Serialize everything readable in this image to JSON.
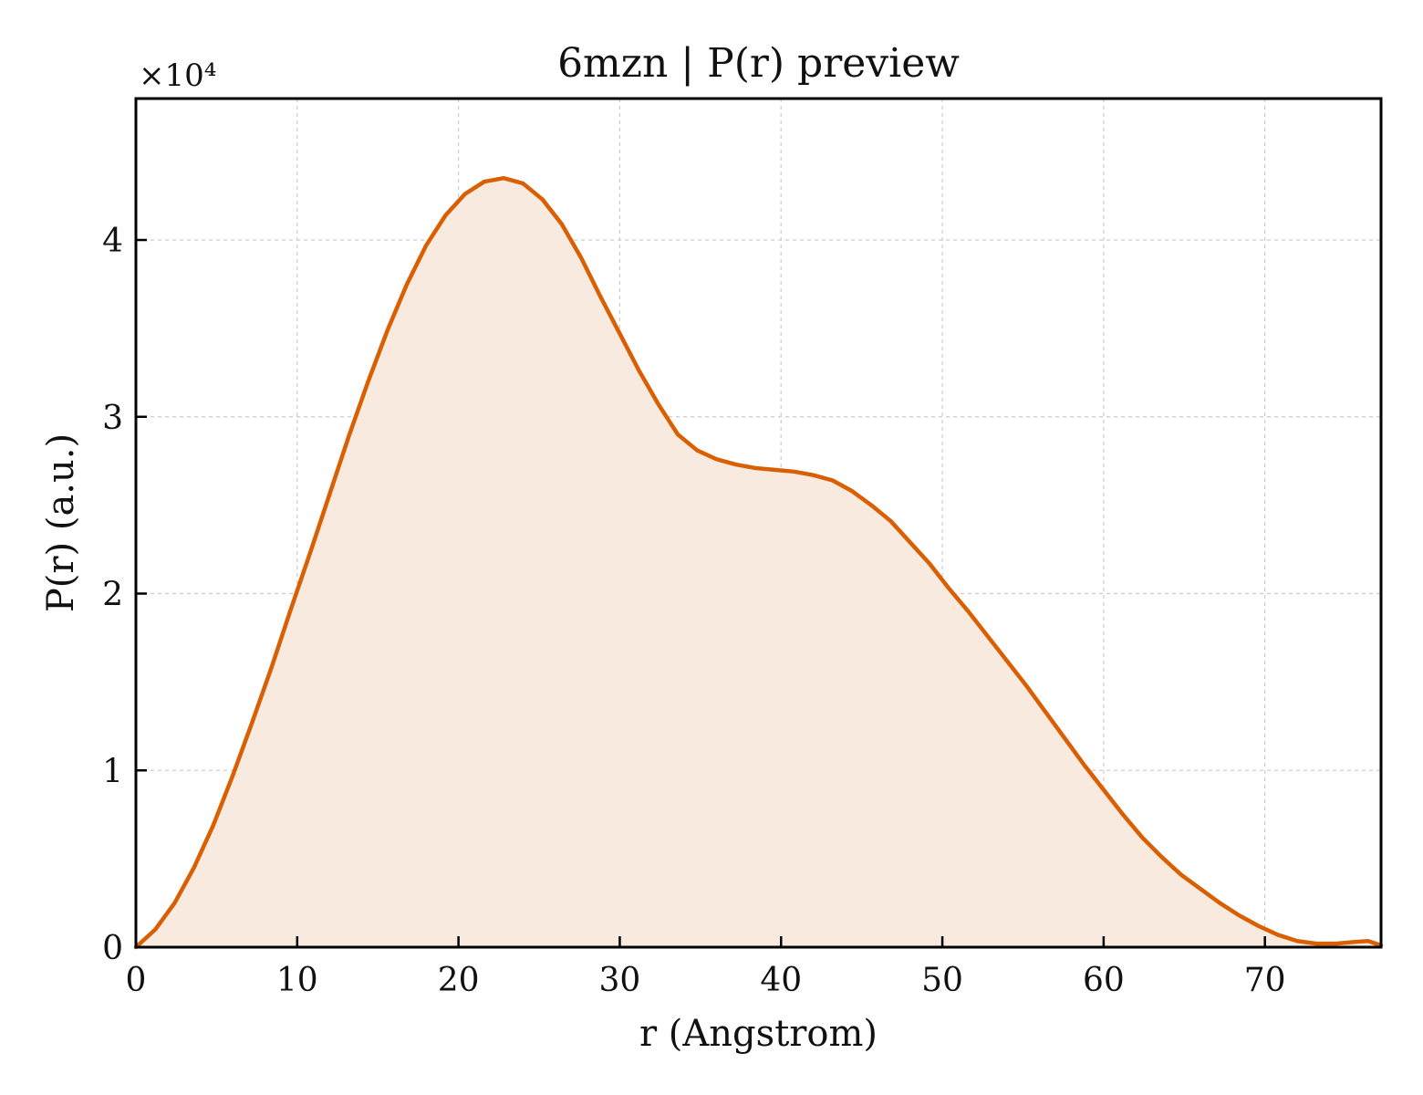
{
  "chart_data": {
    "type": "area",
    "title": "6mzn | P(r) preview",
    "xlabel": "r (Angstrom)",
    "ylabel": "P(r) (a.u.)",
    "y_offset_label": "×10⁴",
    "y_multiplier": 10000,
    "xlim": [
      0,
      77.2
    ],
    "ylim": [
      0,
      48000
    ],
    "x_ticks": [
      0,
      10,
      20,
      30,
      40,
      50,
      60,
      70
    ],
    "y_ticks": [
      0,
      10000,
      20000,
      30000,
      40000
    ],
    "y_tick_labels": [
      "0",
      "1",
      "2",
      "3",
      "4"
    ],
    "grid": true,
    "colors": {
      "line": "#d95f02",
      "fill": "#f9eadf",
      "grid": "#cccccc",
      "axes": "#000000"
    },
    "series": [
      {
        "x": [
          0,
          1.2,
          2.4,
          3.6,
          4.8,
          6.0,
          7.2,
          8.4,
          9.6,
          10.8,
          12.0,
          13.2,
          14.4,
          15.6,
          16.8,
          18.0,
          19.2,
          20.4,
          21.6,
          22.8,
          24.0,
          25.2,
          26.4,
          27.6,
          28.8,
          30.0,
          31.2,
          32.4,
          33.6,
          34.8,
          36.0,
          37.2,
          38.4,
          39.6,
          40.8,
          42.0,
          43.2,
          44.4,
          45.6,
          46.8,
          48.0,
          49.2,
          50.4,
          51.6,
          52.8,
          54.0,
          55.2,
          56.4,
          57.6,
          58.8,
          60.0,
          61.2,
          62.4,
          63.6,
          64.8,
          66.0,
          67.2,
          68.4,
          69.6,
          70.8,
          72.0,
          73.2,
          74.4,
          75.6,
          76.4,
          77.2
        ],
        "values": [
          0,
          1000,
          2500,
          4500,
          6900,
          9700,
          12700,
          15800,
          19100,
          22300,
          25600,
          28900,
          32000,
          34900,
          37500,
          39700,
          41400,
          42600,
          43300,
          43500,
          43200,
          42300,
          40900,
          39000,
          36800,
          34700,
          32600,
          30700,
          29000,
          28100,
          27600,
          27300,
          27100,
          27000,
          26900,
          26700,
          26400,
          25800,
          25000,
          24100,
          22900,
          21700,
          20300,
          19000,
          17600,
          16200,
          14800,
          13300,
          11800,
          10300,
          8900,
          7500,
          6200,
          5100,
          4100,
          3300,
          2500,
          1800,
          1200,
          700,
          350,
          200,
          200,
          300,
          350,
          100
        ]
      }
    ]
  }
}
